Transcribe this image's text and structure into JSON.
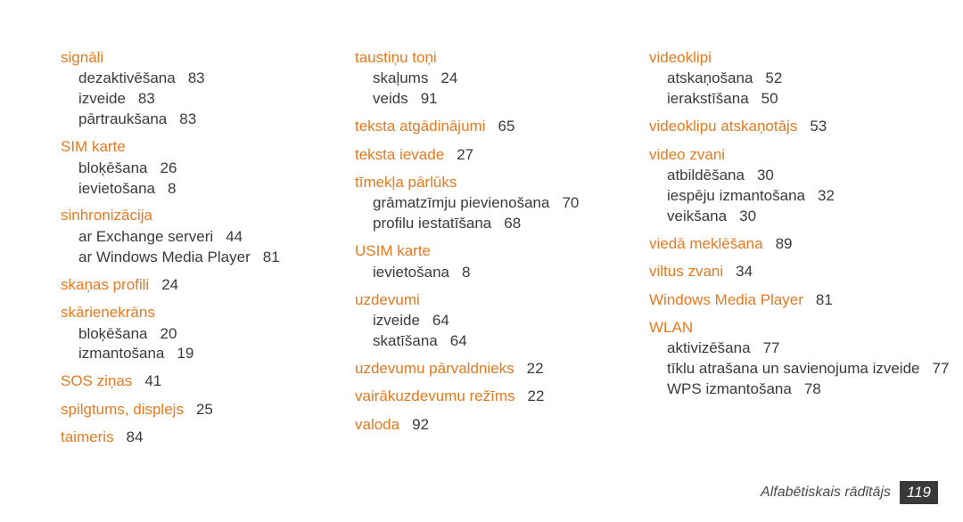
{
  "accent_color": "#e37a1f",
  "text_color": "#3a3a3a",
  "background_color": "#ffffff",
  "font_size_main": 17,
  "footer": {
    "label": "Alfabētiskais rādītājs",
    "page": "119"
  },
  "columns": [
    {
      "entries": [
        {
          "head": "signāli",
          "subs": [
            {
              "t": "dezaktivēšana",
              "p": "83"
            },
            {
              "t": "izveide",
              "p": "83"
            },
            {
              "t": "pārtraukšana",
              "p": "83"
            }
          ]
        },
        {
          "head": "SIM karte",
          "subs": [
            {
              "t": "bloķēšana",
              "p": "26"
            },
            {
              "t": "ievietošana",
              "p": "8"
            }
          ]
        },
        {
          "head": "sinhronizācija",
          "subs": [
            {
              "t": "ar Exchange serveri",
              "p": "44"
            },
            {
              "t": "ar Windows Media Player",
              "p": "81"
            }
          ]
        },
        {
          "head": "skaņas profili",
          "page": "24"
        },
        {
          "head": "skārienekrāns",
          "subs": [
            {
              "t": "bloķēšana",
              "p": "20"
            },
            {
              "t": "izmantošana",
              "p": "19"
            }
          ]
        },
        {
          "head": "SOS ziņas",
          "page": "41"
        },
        {
          "head": "spilgtums, displejs",
          "page": "25"
        },
        {
          "head": "taimeris",
          "page": "84"
        }
      ]
    },
    {
      "entries": [
        {
          "head": "taustiņu toņi",
          "subs": [
            {
              "t": "skaļums",
              "p": "24"
            },
            {
              "t": "veids",
              "p": "91"
            }
          ]
        },
        {
          "head": "teksta atgādinājumi",
          "page": "65"
        },
        {
          "head": "teksta ievade",
          "page": "27"
        },
        {
          "head": "tīmekļa pārlūks",
          "subs": [
            {
              "t": "grāmatzīmju pievienošana",
              "p": "70"
            },
            {
              "t": "profilu iestatīšana",
              "p": "68"
            }
          ]
        },
        {
          "head": "USIM karte",
          "subs": [
            {
              "t": "ievietošana",
              "p": "8"
            }
          ]
        },
        {
          "head": "uzdevumi",
          "subs": [
            {
              "t": "izveide",
              "p": "64"
            },
            {
              "t": "skatīšana",
              "p": "64"
            }
          ]
        },
        {
          "head": "uzdevumu pārvaldnieks",
          "page": "22"
        },
        {
          "head": "vairākuzdevumu režīms",
          "page": "22"
        },
        {
          "head": "valoda",
          "page": "92"
        }
      ]
    },
    {
      "entries": [
        {
          "head": "videoklipi",
          "subs": [
            {
              "t": "atskaņošana",
              "p": "52"
            },
            {
              "t": "ierakstīšana",
              "p": "50"
            }
          ]
        },
        {
          "head": "videoklipu atskaņotājs",
          "page": "53"
        },
        {
          "head": "video zvani",
          "subs": [
            {
              "t": "atbildēšana",
              "p": "30"
            },
            {
              "t": "iespēju izmantošana",
              "p": "32"
            },
            {
              "t": "veikšana",
              "p": "30"
            }
          ]
        },
        {
          "head": "viedā meklēšana",
          "page": "89"
        },
        {
          "head": "viltus zvani",
          "page": "34"
        },
        {
          "head": "Windows Media Player",
          "page": "81"
        },
        {
          "head": "WLAN",
          "subs": [
            {
              "t": "aktivizēšana",
              "p": "77"
            },
            {
              "t": "tīklu atrašana un savienojuma izveide",
              "p": "77"
            },
            {
              "t": "WPS izmantošana",
              "p": "78"
            }
          ]
        }
      ]
    }
  ]
}
